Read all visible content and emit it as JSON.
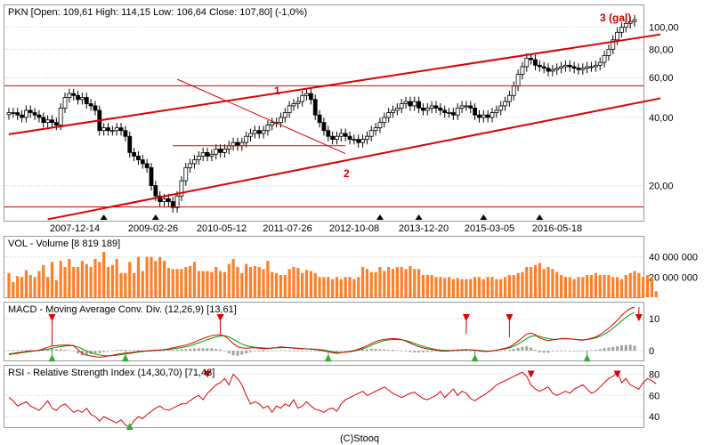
{
  "colors": {
    "candle_up": "#ffffff",
    "candle_down": "#000000",
    "channel": "#dd0000",
    "volume": "#ff7f27",
    "macd_line": "#dd0000",
    "signal_line": "#009900",
    "histogram": "#a0a0a0",
    "rsi_line": "#dd0000",
    "grid": "#cccccc",
    "marker_sell": "#dd0000",
    "marker_buy": "#33aa33"
  },
  "price_panel": {
    "caption": "PKN [Open: 109,61  High: 114,15  Low: 106,64  Close: 107,80] (-1,0%)",
    "annotation_1": "1",
    "annotation_2": "2",
    "annotation_3": "3 (gal)"
  },
  "volume_panel": {
    "caption": "VOL - Volume [8 819 189]"
  },
  "macd_panel": {
    "caption": "MACD - Moving Average Conv. Div. (12,26,9) [13,61]"
  },
  "rsi_panel": {
    "caption": "RSI - Relative Strength Index (14,30,70) [71,43]"
  },
  "footer": {
    "credit": "(C)Stooq"
  },
  "chart_data": [
    {
      "type": "candlestick",
      "scale": "log",
      "ylim": [
        14,
        125
      ],
      "y_ticks": [
        {
          "v": 20,
          "label": "20,00"
        },
        {
          "v": 40,
          "label": "40,00"
        },
        {
          "v": 60,
          "label": "60,00"
        },
        {
          "v": 80,
          "label": "80,00"
        },
        {
          "v": 100,
          "label": "100,00"
        }
      ],
      "x_ticks": [
        "2007-12-14",
        "2009-02-26",
        "2010-05-12",
        "2011-07-26",
        "2012-10-08",
        "2013-12-20",
        "2015-03-05",
        "2016-05-18"
      ],
      "grid": true,
      "close": [
        42,
        42,
        41,
        40,
        43,
        42,
        41,
        40,
        38,
        39,
        38,
        37,
        44,
        49,
        51,
        50,
        48,
        49,
        46,
        45,
        43,
        35,
        36,
        35,
        35,
        36,
        35,
        33,
        28,
        27,
        26,
        25,
        24,
        20,
        18,
        17,
        17.5,
        17,
        16,
        18,
        21,
        24,
        25,
        26,
        27,
        28,
        27,
        27.5,
        29,
        28,
        29,
        30,
        31,
        30,
        31,
        33,
        34,
        35,
        34,
        35,
        37,
        38,
        38,
        40,
        42,
        45,
        46,
        47,
        50,
        51,
        48,
        41,
        38,
        35,
        33,
        32,
        33,
        34,
        33,
        32,
        32,
        31,
        32,
        33,
        35,
        36,
        38,
        40,
        42,
        43,
        44,
        46,
        47,
        45,
        47,
        44,
        43,
        44,
        45,
        44,
        43,
        42,
        42,
        41,
        44,
        45,
        45,
        44,
        41,
        40,
        41,
        40,
        42,
        43,
        45,
        47,
        50,
        55,
        62,
        67,
        73,
        72,
        68,
        67,
        66,
        64,
        65,
        66,
        67,
        68,
        67,
        66,
        65,
        66,
        67,
        67,
        68,
        70,
        75,
        80,
        88,
        95,
        100,
        104,
        106,
        108
      ],
      "channel_upper": [
        {
          "i": 0,
          "v": 33.7
        },
        {
          "i": 151,
          "v": 93
        }
      ],
      "channel_lower": [
        {
          "i": 9,
          "v": 14.2
        },
        {
          "i": 151,
          "v": 48.6
        }
      ],
      "horizontal_levels": [
        55.2,
        16.1
      ],
      "trendline_1": [
        {
          "i": 39,
          "v": 59
        },
        {
          "i": 78,
          "v": 27.7
        }
      ],
      "support_2": {
        "v": 30,
        "from_i": 38,
        "to_i": 78
      },
      "x_axis_markers": [
        {
          "i": 22
        },
        {
          "i": 34
        },
        {
          "i": 86
        },
        {
          "i": 95
        },
        {
          "i": 110
        },
        {
          "i": 123
        }
      ]
    },
    {
      "type": "bar",
      "name": "Volume",
      "y_ticks": [
        {
          "v": 20000000,
          "label": "20 000 000"
        },
        {
          "v": 40000000,
          "label": "40 000 000"
        }
      ],
      "ylim": [
        0,
        60000000
      ],
      "values": [
        24,
        15,
        21,
        20,
        27,
        22,
        20,
        26,
        32,
        20,
        35,
        17,
        36,
        30,
        38,
        30,
        30,
        36,
        33,
        30,
        38,
        35,
        45,
        30,
        32,
        38,
        24,
        24,
        35,
        24,
        40,
        26,
        40,
        40,
        36,
        40,
        36,
        29,
        28,
        28,
        28,
        30,
        31,
        35,
        26,
        26,
        26,
        25,
        30,
        26,
        25,
        33,
        38,
        30,
        24,
        33,
        30,
        31,
        30,
        28,
        36,
        25,
        24,
        22,
        22,
        28,
        30,
        29,
        24,
        27,
        26,
        24,
        20,
        20,
        20,
        18,
        20,
        18,
        20,
        20,
        18,
        20,
        30,
        28,
        25,
        25,
        30,
        26,
        30,
        28,
        30,
        30,
        28,
        31,
        28,
        28,
        22,
        22,
        22,
        20,
        20,
        19,
        20,
        18,
        19,
        18,
        18,
        18,
        20,
        20,
        18,
        20,
        20,
        18,
        18,
        20,
        22,
        22,
        24,
        25,
        30,
        30,
        32,
        34,
        28,
        30,
        28,
        25,
        22,
        20,
        20,
        18,
        20,
        20,
        22,
        22,
        24,
        22,
        22,
        22,
        20,
        20,
        18,
        22,
        24,
        26,
        24,
        20,
        22,
        20,
        6
      ]
    },
    {
      "type": "line",
      "name": "MACD",
      "y_ticks": [
        {
          "v": 0,
          "label": "0"
        },
        {
          "v": 10,
          "label": "10"
        }
      ],
      "ylim": [
        -3,
        15
      ],
      "macd": [
        -1.0,
        -0.8,
        -0.6,
        -0.4,
        -0.2,
        0.0,
        0.0,
        0.2,
        0.6,
        1.1,
        1.5,
        1.6,
        1.8,
        1.8,
        1.8,
        1.6,
        0.4,
        -0.8,
        -1.4,
        -1.6,
        -1.8,
        -2.0,
        -1.9,
        -1.6,
        -1.4,
        -1.1,
        -0.9,
        -0.7,
        -0.6,
        -0.4,
        -0.2,
        -0.1,
        0.0,
        0.1,
        0.2,
        0.2,
        0.4,
        0.6,
        0.9,
        1.2,
        1.5,
        1.8,
        2.2,
        2.7,
        3.3,
        3.8,
        4.3,
        4.7,
        4.9,
        5.0,
        4.6,
        3.5,
        2.2,
        1.3,
        0.9,
        0.8,
        0.9,
        1.0,
        0.8,
        0.6,
        0.7,
        0.9,
        1.0,
        1.2,
        1.1,
        1.0,
        0.8,
        0.7,
        0.6,
        0.6,
        0.5,
        0.4,
        0.2,
        0.0,
        -0.3,
        -0.6,
        -0.8,
        -0.6,
        -0.4,
        -0.2,
        0.1,
        0.5,
        1.0,
        1.6,
        2.3,
        2.9,
        3.3,
        3.6,
        3.7,
        3.8,
        3.7,
        3.5,
        3.0,
        2.4,
        1.8,
        1.3,
        0.9,
        0.6,
        0.4,
        0.2,
        0.0,
        -0.1,
        0.0,
        0.1,
        0.2,
        0.3,
        0.4,
        0.3,
        0.2,
        0.0,
        -0.2,
        -0.2,
        0.0,
        0.2,
        0.5,
        0.8,
        1.2,
        2.0,
        3.0,
        4.1,
        5.2,
        5.5,
        5.0,
        4.0,
        3.5,
        3.2,
        3.4,
        3.6,
        3.8,
        3.8,
        3.7,
        3.6,
        3.4,
        3.3,
        3.6,
        3.9,
        4.3,
        5.0,
        6.0,
        7.0,
        8.2,
        9.5,
        11.0,
        12.2,
        13.2,
        13.6
      ],
      "signal": [
        -1.2,
        -1.0,
        -0.8,
        -0.6,
        -0.4,
        -0.2,
        0.0,
        0.1,
        0.3,
        0.5,
        0.8,
        1.1,
        1.3,
        1.5,
        1.6,
        1.6,
        1.2,
        0.6,
        0.0,
        -0.6,
        -1.0,
        -1.3,
        -1.5,
        -1.6,
        -1.5,
        -1.4,
        -1.2,
        -1.0,
        -0.8,
        -0.6,
        -0.4,
        -0.2,
        -0.1,
        0.0,
        0.1,
        0.2,
        0.3,
        0.4,
        0.6,
        0.8,
        1.0,
        1.3,
        1.6,
        2.0,
        2.5,
        3.0,
        3.5,
        3.9,
        4.3,
        4.6,
        4.7,
        4.3,
        3.6,
        2.8,
        2.1,
        1.6,
        1.3,
        1.1,
        1.0,
        0.9,
        0.8,
        0.8,
        0.9,
        1.0,
        1.0,
        1.0,
        0.9,
        0.8,
        0.7,
        0.6,
        0.6,
        0.5,
        0.4,
        0.2,
        0.0,
        -0.3,
        -0.5,
        -0.5,
        -0.4,
        -0.3,
        -0.1,
        0.2,
        0.6,
        1.1,
        1.7,
        2.3,
        2.8,
        3.2,
        3.4,
        3.5,
        3.5,
        3.4,
        3.2,
        2.8,
        2.3,
        1.8,
        1.4,
        1.0,
        0.7,
        0.4,
        0.2,
        0.1,
        0.1,
        0.1,
        0.2,
        0.2,
        0.3,
        0.3,
        0.2,
        0.1,
        0.0,
        -0.1,
        0.0,
        0.2,
        0.4,
        0.6,
        0.9,
        1.4,
        2.1,
        2.9,
        3.8,
        4.5,
        4.7,
        4.5,
        4.1,
        3.8,
        3.6,
        3.6,
        3.7,
        3.7,
        3.7,
        3.6,
        3.5,
        3.4,
        3.5,
        3.7,
        4.0,
        4.5,
        5.2,
        6.0,
        7.0,
        8.1,
        9.3,
        10.4,
        11.3,
        12.0
      ],
      "sell_markers": [
        {
          "i": 10,
          "v": 1.6
        },
        {
          "i": 49,
          "v": 5.0
        },
        {
          "i": 106,
          "v": 5.2
        },
        {
          "i": 116,
          "v": 4.2
        },
        {
          "i": 146,
          "v": 13.6
        }
      ],
      "buy_markers": [
        {
          "i": 10,
          "v": -2.2
        },
        {
          "i": 27,
          "v": -2.2
        },
        {
          "i": 74,
          "v": -2.2
        },
        {
          "i": 108,
          "v": -2.2
        },
        {
          "i": 134,
          "v": -2.2
        }
      ]
    },
    {
      "type": "line",
      "name": "RSI",
      "y_ticks": [
        {
          "v": 40,
          "label": "40"
        },
        {
          "v": 60,
          "label": "60"
        },
        {
          "v": 80,
          "label": "80"
        }
      ],
      "ylim": [
        30,
        88
      ],
      "values": [
        58,
        55,
        50,
        52,
        54,
        50,
        48,
        46,
        50,
        55,
        48,
        46,
        50,
        52,
        48,
        44,
        46,
        44,
        48,
        42,
        40,
        36,
        40,
        38,
        36,
        34,
        37,
        32,
        30,
        36,
        40,
        38,
        42,
        45,
        48,
        50,
        47,
        46,
        48,
        50,
        52,
        52,
        55,
        58,
        60,
        56,
        62,
        66,
        70,
        72,
        76,
        70,
        80,
        76,
        70,
        60,
        52,
        54,
        52,
        48,
        50,
        44,
        50,
        48,
        52,
        50,
        56,
        48,
        50,
        54,
        50,
        47,
        46,
        44,
        47,
        48,
        45,
        52,
        56,
        58,
        60,
        62,
        64,
        60,
        62,
        64,
        66,
        68,
        65,
        62,
        60,
        58,
        60,
        62,
        63,
        60,
        57,
        56,
        58,
        60,
        64,
        58,
        62,
        66,
        60,
        64,
        62,
        57,
        55,
        58,
        60,
        63,
        66,
        70,
        72,
        74,
        76,
        78,
        80,
        82,
        78,
        70,
        66,
        64,
        66,
        68,
        62,
        60,
        62,
        64,
        62,
        66,
        68,
        70,
        66,
        62,
        64,
        68,
        72,
        76,
        78,
        82,
        72,
        76,
        70,
        68,
        66,
        72,
        76,
        74,
        71
      ],
      "sell_markers": [
        {
          "i": 46,
          "v": 80
        },
        {
          "i": 121,
          "v": 80
        },
        {
          "i": 141,
          "v": 80
        }
      ],
      "buy_markers": [
        {
          "i": 28,
          "v": 30
        }
      ]
    }
  ]
}
